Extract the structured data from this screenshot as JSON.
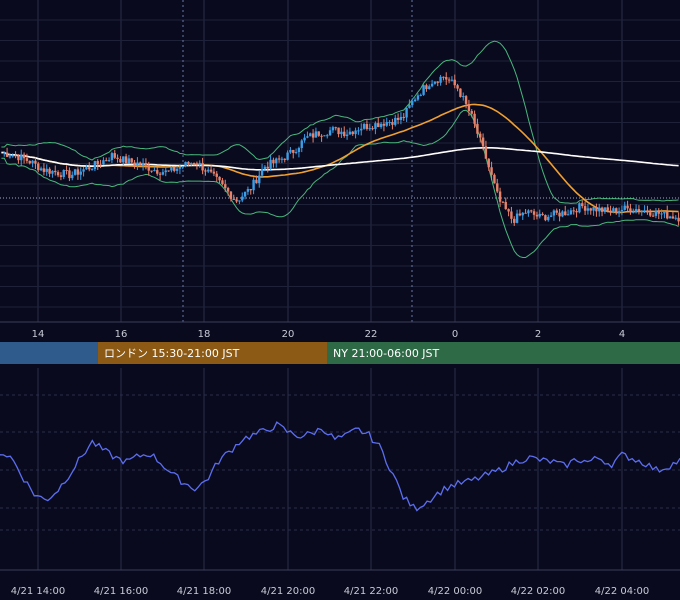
{
  "theme": {
    "background": "#0a0a1e",
    "grid": "#2a2e48",
    "candle_up": "#3a9ee8",
    "candle_down": "#e8826a",
    "bollinger": "#49b77c",
    "ma_fast": "#f0a030",
    "ma_slow": "#ffffff",
    "oscillator": "#5b6ef0",
    "session_tokyo": "#2e5a8c",
    "session_london": "#8c5a14",
    "session_ny": "#2e6a46"
  },
  "sessions": [
    {
      "label": "",
      "color": "#2e5a8c"
    },
    {
      "label": "ロンドン 15:30-21:00 JST",
      "color": "#8c5a14"
    },
    {
      "label": "NY 21:00-06:00 JST",
      "color": "#2e6a46"
    }
  ],
  "chart_data": [
    {
      "type": "candlestick",
      "indicators": [
        "bollinger-bands",
        "moving-average-fast",
        "moving-average-slow",
        "reference-line"
      ],
      "x_tick_labels": [
        "14",
        "16",
        "18",
        "20",
        "22",
        "0",
        "2",
        "4"
      ],
      "approx_price_path": [
        0.53,
        0.52,
        0.5,
        0.47,
        0.46,
        0.45,
        0.47,
        0.49,
        0.52,
        0.5,
        0.49,
        0.47,
        0.46,
        0.48,
        0.5,
        0.46,
        0.41,
        0.36,
        0.4,
        0.48,
        0.5,
        0.53,
        0.58,
        0.6,
        0.61,
        0.6,
        0.62,
        0.63,
        0.64,
        0.65,
        0.73,
        0.78,
        0.8,
        0.76,
        0.66,
        0.52,
        0.36,
        0.29,
        0.32,
        0.3,
        0.31,
        0.32,
        0.34,
        0.33,
        0.32,
        0.33,
        0.33,
        0.32,
        0.31,
        0.3
      ],
      "grid": true
    },
    {
      "type": "line",
      "x_tick_labels": [
        "4/21 14:00",
        "4/21 16:00",
        "4/21 18:00",
        "4/21 20:00",
        "4/21 22:00",
        "4/22 00:00",
        "4/22 02:00",
        "4/22 04:00"
      ],
      "series": [
        {
          "values": [
            0.62,
            0.58,
            0.44,
            0.32,
            0.28,
            0.35,
            0.46,
            0.58,
            0.69,
            0.63,
            0.58,
            0.55,
            0.59,
            0.61,
            0.54,
            0.46,
            0.4,
            0.36,
            0.43,
            0.56,
            0.63,
            0.71,
            0.74,
            0.77,
            0.81,
            0.76,
            0.73,
            0.75,
            0.79,
            0.71,
            0.73,
            0.78,
            0.74,
            0.65,
            0.48,
            0.3,
            0.22,
            0.27,
            0.33,
            0.38,
            0.4,
            0.42,
            0.45,
            0.48,
            0.52,
            0.56,
            0.58,
            0.56,
            0.55,
            0.52,
            0.57,
            0.55,
            0.58,
            0.53,
            0.6,
            0.57,
            0.54,
            0.49,
            0.52,
            0.56
          ]
        }
      ],
      "grid": true
    }
  ]
}
